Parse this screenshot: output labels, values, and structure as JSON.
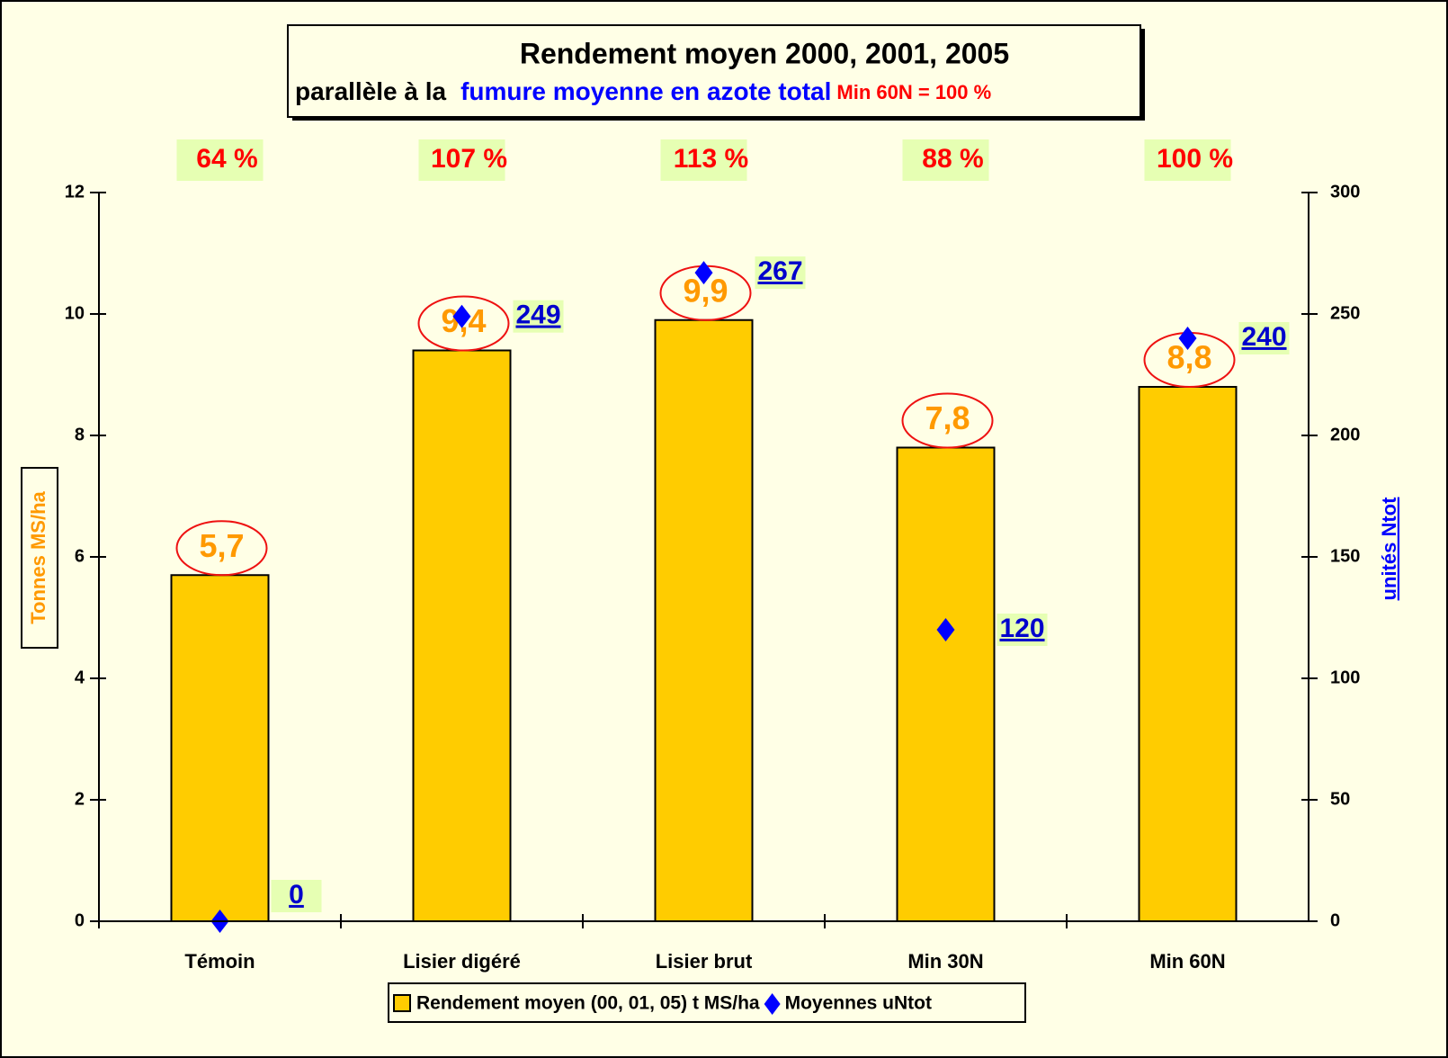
{
  "chart_data": {
    "type": "bar",
    "title": "Rendement moyen 2000, 2001, 2005",
    "subtitle": [
      "parallèle à la",
      "fumure moyenne en azote total",
      "Min 60N = 100 %"
    ],
    "categories": [
      "Témoin",
      "Lisier digéré",
      "Lisier brut",
      "Min 30N",
      "Min 60N"
    ],
    "percent_labels": [
      "64 %",
      "107 %",
      "113 %",
      "88 %",
      "100 %"
    ],
    "series": [
      {
        "name": "Rendement moyen (00, 01, 05) t MS/ha",
        "color": "#ffcc00",
        "values": [
          5.7,
          9.4,
          9.9,
          7.8,
          8.8
        ],
        "value_labels": [
          "5,7",
          "9,4",
          "9,9",
          "7,8",
          "8,8"
        ]
      },
      {
        "name": "Moyennes uNtot",
        "color": "#0000ff",
        "axis": "y2",
        "values": [
          0,
          249,
          267,
          120,
          240
        ]
      }
    ],
    "ylabel": "Tonnes MS/ha",
    "y2label": "unités Ntot",
    "ylim": [
      0,
      12
    ],
    "yticks": [
      0,
      2,
      4,
      6,
      8,
      10,
      12
    ],
    "y2lim": [
      0,
      300
    ],
    "y2ticks": [
      0,
      50,
      100,
      150,
      200,
      250,
      300
    ]
  }
}
